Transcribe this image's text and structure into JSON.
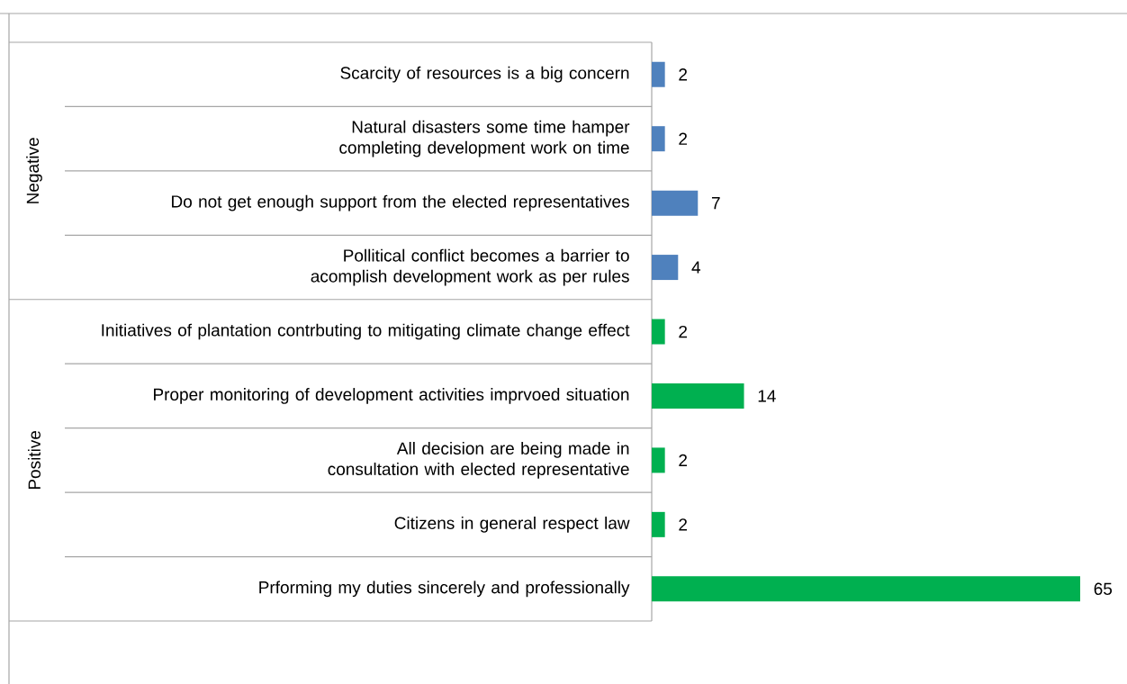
{
  "chart_data": {
    "type": "bar",
    "orientation": "horizontal",
    "categories": [
      "Scarcity of resources is a big concern",
      "Natural disasters some time hamper completing development work on time",
      "Do not get enough support from the elected representatives",
      "Pollitical conflict  becomes a barrier to acomplish development work as per rules",
      "Initiatives of plantation contrbuting to mitigating climate change effect",
      "Proper monitoring of development activities  imprvoed situation",
      "All decision are being made in consultation with elected representative",
      "Citizens in general respect law",
      "Prforming my duties sincerely and professionally"
    ],
    "values": [
      2,
      2,
      7,
      4,
      2,
      14,
      2,
      2,
      65
    ],
    "colors": [
      "#4f81bd",
      "#4f81bd",
      "#4f81bd",
      "#4f81bd",
      "#00b050",
      "#00b050",
      "#00b050",
      "#00b050",
      "#00b050"
    ],
    "annotations": [
      "Negative",
      "Positive"
    ],
    "data_labels": true
  }
}
